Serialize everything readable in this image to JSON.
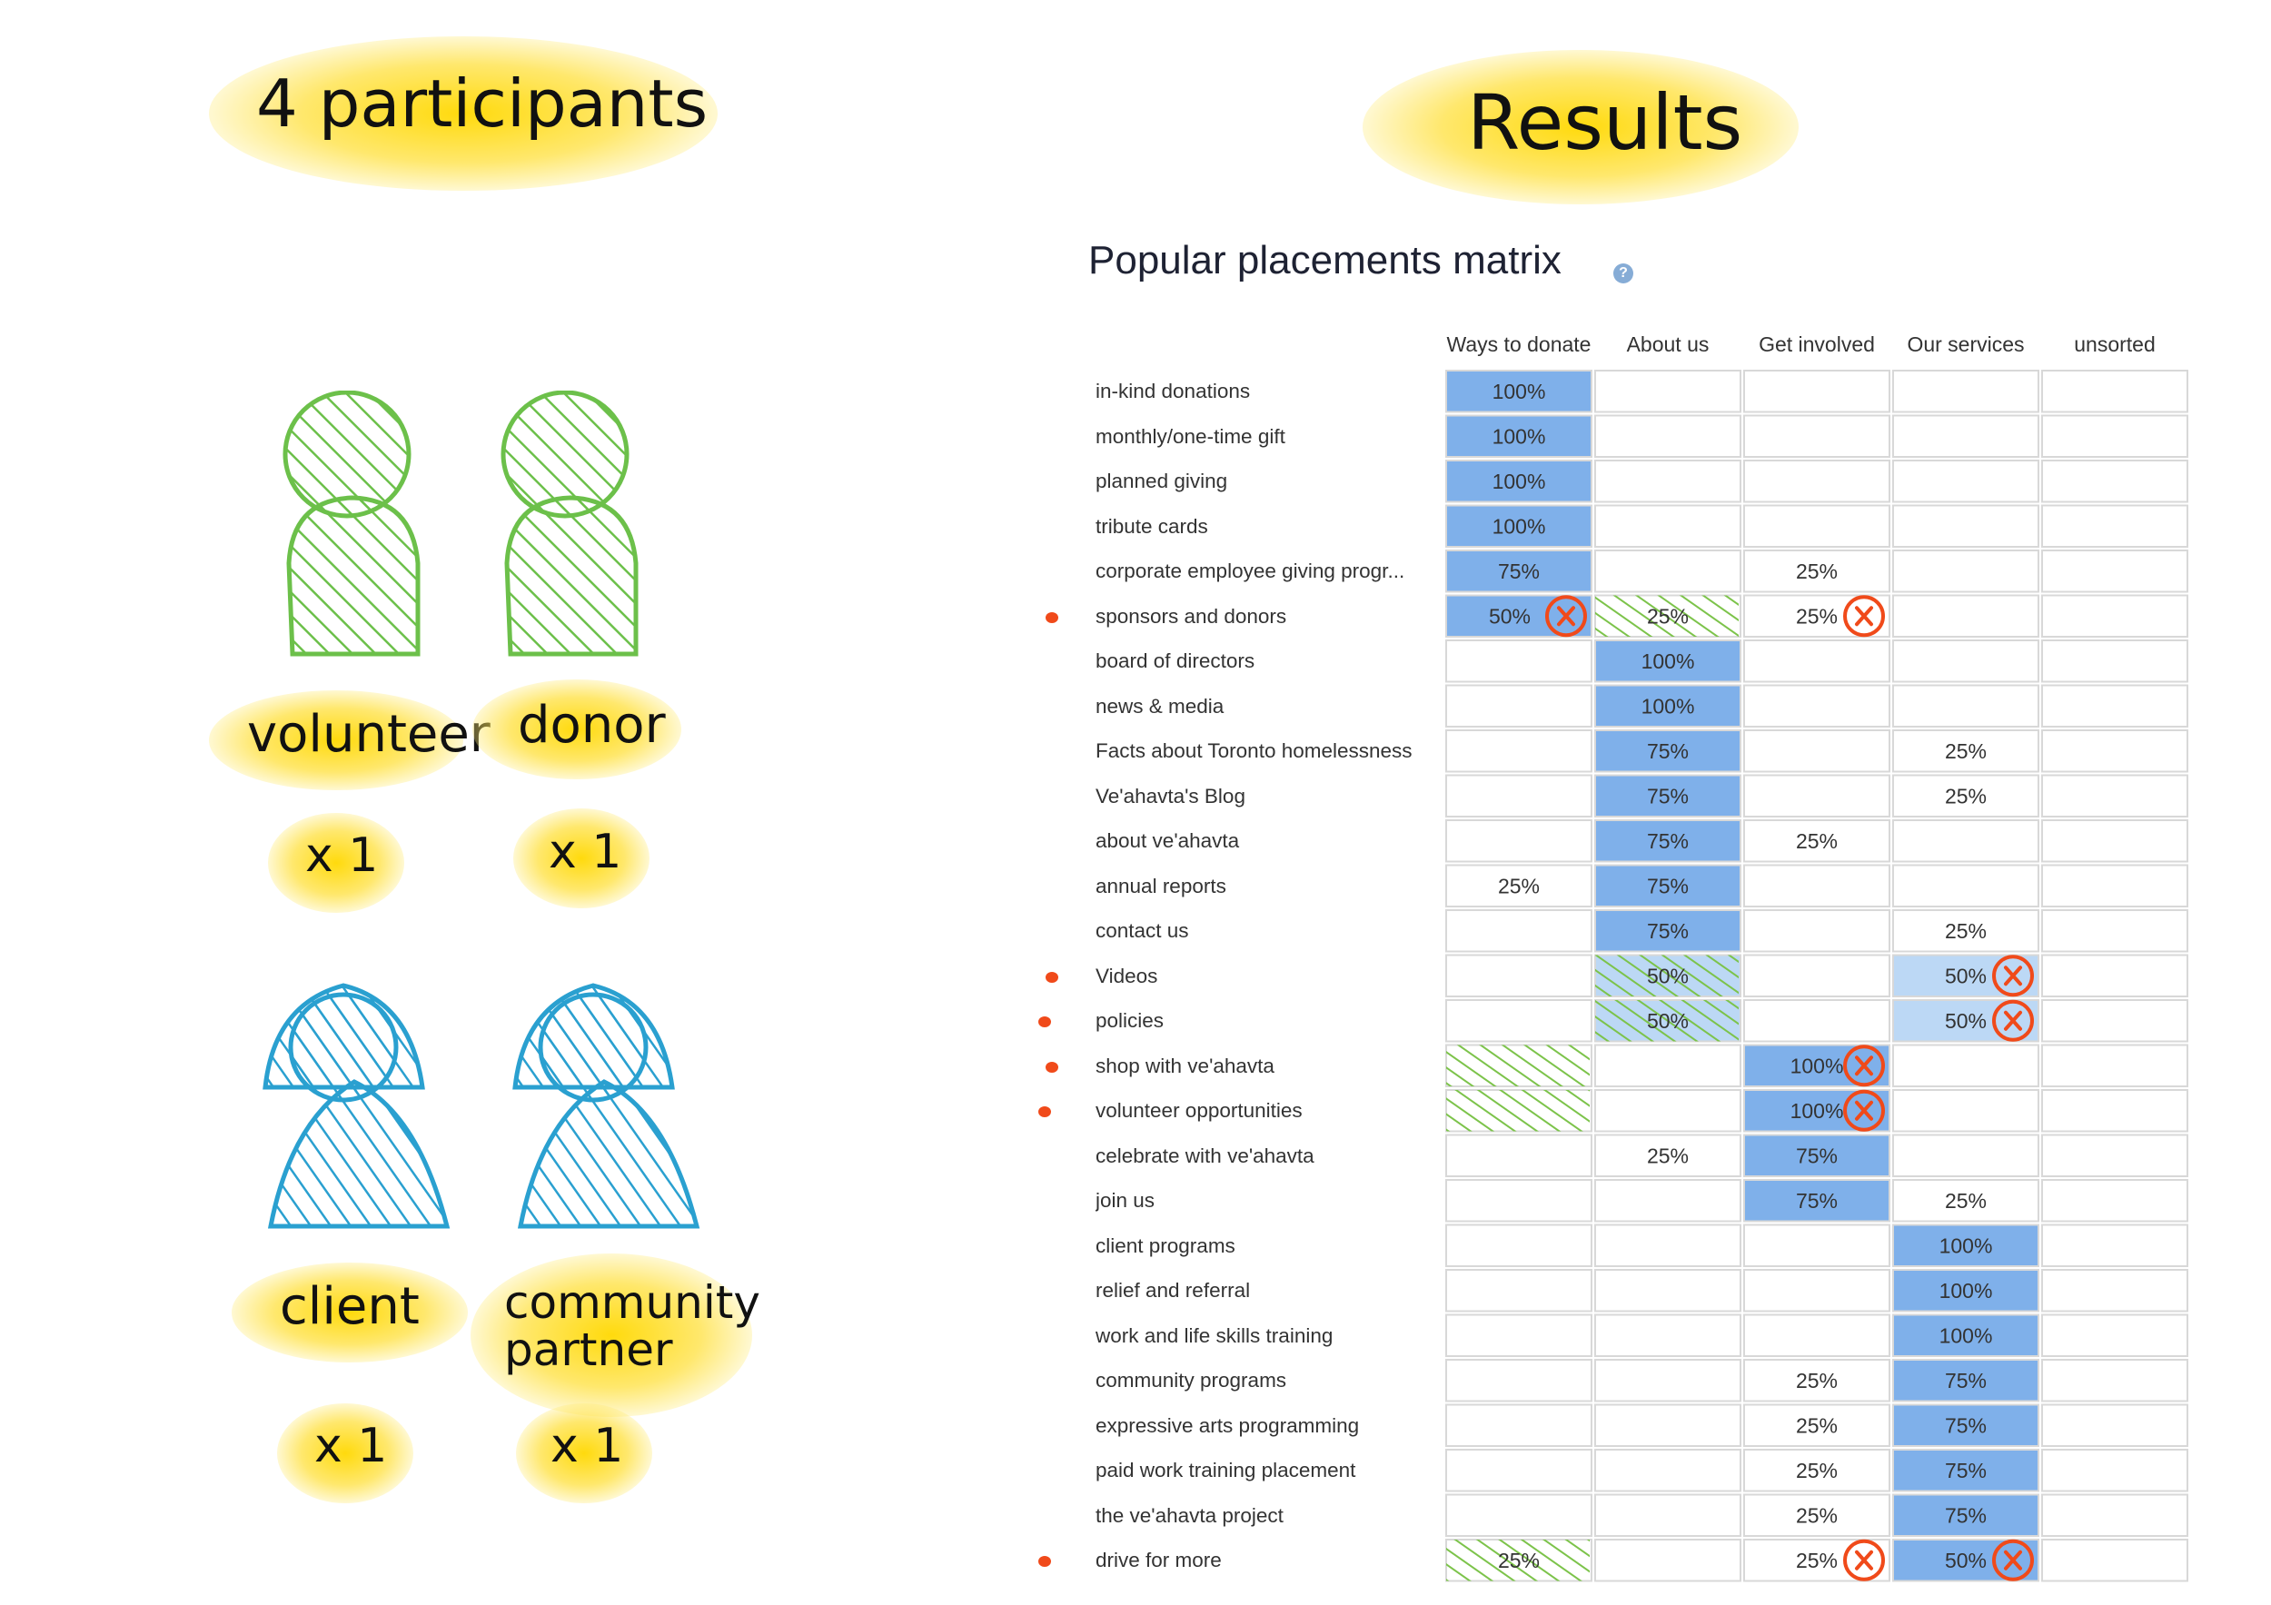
{
  "participants": {
    "title": "4 participants",
    "groups": [
      {
        "label": "volunteer",
        "count": "x 1",
        "color": "#6cc04a",
        "shape": "person"
      },
      {
        "label": "donor",
        "count": "x 1",
        "color": "#6cc04a",
        "shape": "person"
      },
      {
        "label": "client",
        "count": "x 1",
        "color": "#2aa0d0",
        "shape": "person-alt"
      },
      {
        "label": "community partner",
        "count": "x 1",
        "color": "#2aa0d0",
        "shape": "person-alt"
      }
    ]
  },
  "results": {
    "title": "Results",
    "matrix_title": "Popular placements matrix",
    "help_icon": "question-icon",
    "columns": [
      "Ways to donate",
      "About us",
      "Get involved",
      "Our services",
      "unsorted"
    ],
    "colors": {
      "strong": "#7fb0ea",
      "light": "#bcd8f5",
      "hatch": "#7cc34a",
      "mark": "#f04a1a",
      "grid": "#d8d8d8"
    },
    "rows": [
      {
        "label": "in-kind donations",
        "flag": false,
        "cells": [
          {
            "t": "100%",
            "s": "strong"
          },
          {},
          {},
          {},
          {}
        ]
      },
      {
        "label": "monthly/one-time gift",
        "flag": false,
        "cells": [
          {
            "t": "100%",
            "s": "strong"
          },
          {},
          {},
          {},
          {}
        ]
      },
      {
        "label": "planned giving",
        "flag": false,
        "cells": [
          {
            "t": "100%",
            "s": "strong"
          },
          {},
          {},
          {},
          {}
        ]
      },
      {
        "label": "tribute cards",
        "flag": false,
        "cells": [
          {
            "t": "100%",
            "s": "strong"
          },
          {},
          {},
          {},
          {}
        ]
      },
      {
        "label": "corporate employee giving progr...",
        "flag": false,
        "cells": [
          {
            "t": "75%",
            "s": "strong"
          },
          {},
          {
            "t": "25%"
          },
          {},
          {}
        ]
      },
      {
        "label": "sponsors and donors",
        "flag": true,
        "cells": [
          {
            "t": "50%",
            "s": "strong",
            "x": true
          },
          {
            "t": "25%",
            "h": true
          },
          {
            "t": "25%",
            "x": true
          },
          {},
          {}
        ]
      },
      {
        "label": "board of directors",
        "flag": false,
        "cells": [
          {},
          {
            "t": "100%",
            "s": "strong"
          },
          {},
          {},
          {}
        ]
      },
      {
        "label": "news & media",
        "flag": false,
        "cells": [
          {},
          {
            "t": "100%",
            "s": "strong"
          },
          {},
          {},
          {}
        ]
      },
      {
        "label": "Facts about Toronto homelessness",
        "flag": false,
        "cells": [
          {},
          {
            "t": "75%",
            "s": "strong"
          },
          {},
          {
            "t": "25%"
          },
          {}
        ]
      },
      {
        "label": "Ve'ahavta's Blog",
        "flag": false,
        "cells": [
          {},
          {
            "t": "75%",
            "s": "strong"
          },
          {},
          {
            "t": "25%"
          },
          {}
        ]
      },
      {
        "label": "about ve'ahavta",
        "flag": false,
        "cells": [
          {},
          {
            "t": "75%",
            "s": "strong"
          },
          {
            "t": "25%"
          },
          {},
          {}
        ]
      },
      {
        "label": "annual reports",
        "flag": false,
        "cells": [
          {
            "t": "25%"
          },
          {
            "t": "75%",
            "s": "strong"
          },
          {},
          {},
          {}
        ]
      },
      {
        "label": "contact us",
        "flag": false,
        "cells": [
          {},
          {
            "t": "75%",
            "s": "strong"
          },
          {},
          {
            "t": "25%"
          },
          {}
        ]
      },
      {
        "label": "Videos",
        "flag": true,
        "cells": [
          {},
          {
            "t": "50%",
            "s": "light",
            "h": true
          },
          {},
          {
            "t": "50%",
            "s": "light",
            "x": true
          },
          {}
        ]
      },
      {
        "label": "policies",
        "flag": true,
        "cells": [
          {},
          {
            "t": "50%",
            "s": "light",
            "h": true
          },
          {},
          {
            "t": "50%",
            "s": "light",
            "x": true
          },
          {}
        ]
      },
      {
        "label": "shop with ve'ahavta",
        "flag": true,
        "cells": [
          {
            "h": true
          },
          {},
          {
            "t": "100%",
            "s": "strong",
            "x": true
          },
          {},
          {}
        ]
      },
      {
        "label": "volunteer opportunities",
        "flag": true,
        "cells": [
          {
            "h": true
          },
          {},
          {
            "t": "100%",
            "s": "strong",
            "x": true
          },
          {},
          {}
        ]
      },
      {
        "label": "celebrate with ve'ahavta",
        "flag": false,
        "cells": [
          {},
          {
            "t": "25%"
          },
          {
            "t": "75%",
            "s": "strong"
          },
          {},
          {}
        ]
      },
      {
        "label": "join us",
        "flag": false,
        "cells": [
          {},
          {},
          {
            "t": "75%",
            "s": "strong"
          },
          {
            "t": "25%"
          },
          {}
        ]
      },
      {
        "label": "client programs",
        "flag": false,
        "cells": [
          {},
          {},
          {},
          {
            "t": "100%",
            "s": "strong"
          },
          {}
        ]
      },
      {
        "label": "relief and referral",
        "flag": false,
        "cells": [
          {},
          {},
          {},
          {
            "t": "100%",
            "s": "strong"
          },
          {}
        ]
      },
      {
        "label": "work and life skills training",
        "flag": false,
        "cells": [
          {},
          {},
          {},
          {
            "t": "100%",
            "s": "strong"
          },
          {}
        ]
      },
      {
        "label": "community programs",
        "flag": false,
        "cells": [
          {},
          {},
          {
            "t": "25%"
          },
          {
            "t": "75%",
            "s": "strong"
          },
          {}
        ]
      },
      {
        "label": "expressive arts programming",
        "flag": false,
        "cells": [
          {},
          {},
          {
            "t": "25%"
          },
          {
            "t": "75%",
            "s": "strong"
          },
          {}
        ]
      },
      {
        "label": "paid work training placement",
        "flag": false,
        "cells": [
          {},
          {},
          {
            "t": "25%"
          },
          {
            "t": "75%",
            "s": "strong"
          },
          {}
        ]
      },
      {
        "label": "the ve'ahavta project",
        "flag": false,
        "cells": [
          {},
          {},
          {
            "t": "25%"
          },
          {
            "t": "75%",
            "s": "strong"
          },
          {}
        ]
      },
      {
        "label": "drive for more",
        "flag": true,
        "cells": [
          {
            "t": "25%",
            "h": true
          },
          {},
          {
            "t": "25%",
            "x": true
          },
          {
            "t": "50%",
            "s": "strong",
            "x": true
          },
          {}
        ]
      }
    ]
  }
}
